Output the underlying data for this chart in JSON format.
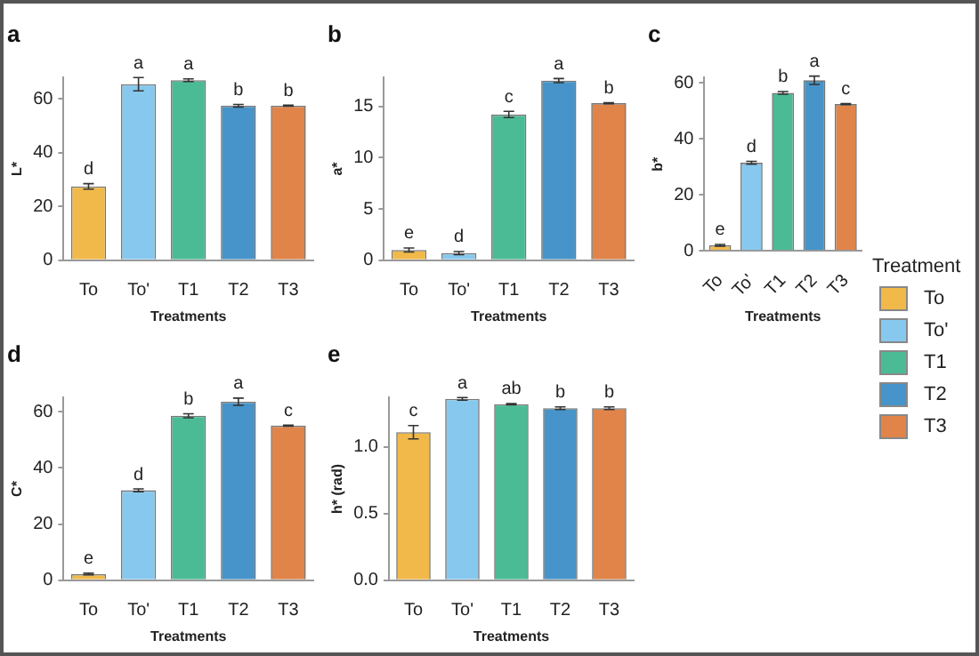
{
  "chart_data": [
    {
      "type": "bar",
      "title": "a",
      "xlabel": "Treatments",
      "ylabel": "L*",
      "categories": [
        "To",
        "To'",
        "T1",
        "T2",
        "T3"
      ],
      "values": [
        27.5,
        65.5,
        67,
        57.5,
        57.5
      ],
      "colors": [
        "#f0b94a",
        "#87c8ee",
        "#4bbb96",
        "#4694c9",
        "#e0844a"
      ],
      "errors": [
        1,
        2.5,
        0.5,
        0.5,
        0.2
      ],
      "value_labels": [
        "d",
        "a",
        "a",
        "b",
        "b"
      ],
      "ylim": [
        0,
        68
      ],
      "yticks": [
        0,
        20,
        40,
        60
      ],
      "grid": false
    },
    {
      "type": "bar",
      "title": "b",
      "xlabel": "Treatments",
      "ylabel": "a*",
      "categories": [
        "To",
        "To'",
        "T1",
        "T2",
        "T3"
      ],
      "values": [
        1.0,
        0.7,
        14.2,
        17.5,
        15.3
      ],
      "colors": [
        "#f0b94a",
        "#87c8ee",
        "#4bbb96",
        "#4694c9",
        "#e0844a"
      ],
      "errors": [
        0.2,
        0.15,
        0.3,
        0.2,
        0.05
      ],
      "value_labels": [
        "e",
        "d",
        "c",
        "a",
        "b"
      ],
      "ylim": [
        0,
        17.8
      ],
      "yticks": [
        0,
        5,
        10,
        15
      ],
      "grid": false
    },
    {
      "type": "bar",
      "title": "c",
      "xlabel": "Treatments",
      "ylabel": "b*",
      "categories": [
        "To",
        "To'",
        "T1",
        "T2",
        "T3"
      ],
      "values": [
        2,
        31.5,
        56.5,
        61,
        52.5
      ],
      "colors": [
        "#f0b94a",
        "#87c8ee",
        "#4bbb96",
        "#4694c9",
        "#e0844a"
      ],
      "errors": [
        0.3,
        0.5,
        0.5,
        1.5,
        0.2
      ],
      "value_labels": [
        "e",
        "d",
        "b",
        "a",
        "c"
      ],
      "ylim": [
        0,
        62
      ],
      "yticks": [
        0,
        20,
        40,
        60
      ],
      "grid": false,
      "legend_title": "Treatment"
    },
    {
      "type": "bar",
      "title": "d",
      "xlabel": "Treatments",
      "ylabel": "C*",
      "categories": [
        "To",
        "To'",
        "T1",
        "T2",
        "T3"
      ],
      "values": [
        2.2,
        32,
        58.5,
        63.5,
        55
      ],
      "colors": [
        "#f0b94a",
        "#87c8ee",
        "#4bbb96",
        "#4694c9",
        "#e0844a"
      ],
      "errors": [
        0.3,
        0.5,
        0.7,
        1.3,
        0.2
      ],
      "value_labels": [
        "e",
        "d",
        "b",
        "a",
        "c"
      ],
      "ylim": [
        0,
        65
      ],
      "yticks": [
        0,
        20,
        40,
        60
      ],
      "grid": false
    },
    {
      "type": "bar",
      "title": "e",
      "xlabel": "Treatments",
      "ylabel": "h* (rad)",
      "categories": [
        "To",
        "To'",
        "T1",
        "T2",
        "T3"
      ],
      "values": [
        1.11,
        1.36,
        1.32,
        1.29,
        1.29
      ],
      "colors": [
        "#f0b94a",
        "#87c8ee",
        "#4bbb96",
        "#4694c9",
        "#e0844a"
      ],
      "errors": [
        0.05,
        0.01,
        0.005,
        0.01,
        0.01
      ],
      "value_labels": [
        "c",
        "a",
        "ab",
        "b",
        "b"
      ],
      "ylim": [
        0,
        1.37
      ],
      "yticks": [
        {
          "value": 0,
          "label": "0.0"
        },
        {
          "value": 0.5,
          "label": "0.5"
        },
        {
          "value": 1,
          "label": "1.0"
        }
      ],
      "grid": false
    }
  ]
}
